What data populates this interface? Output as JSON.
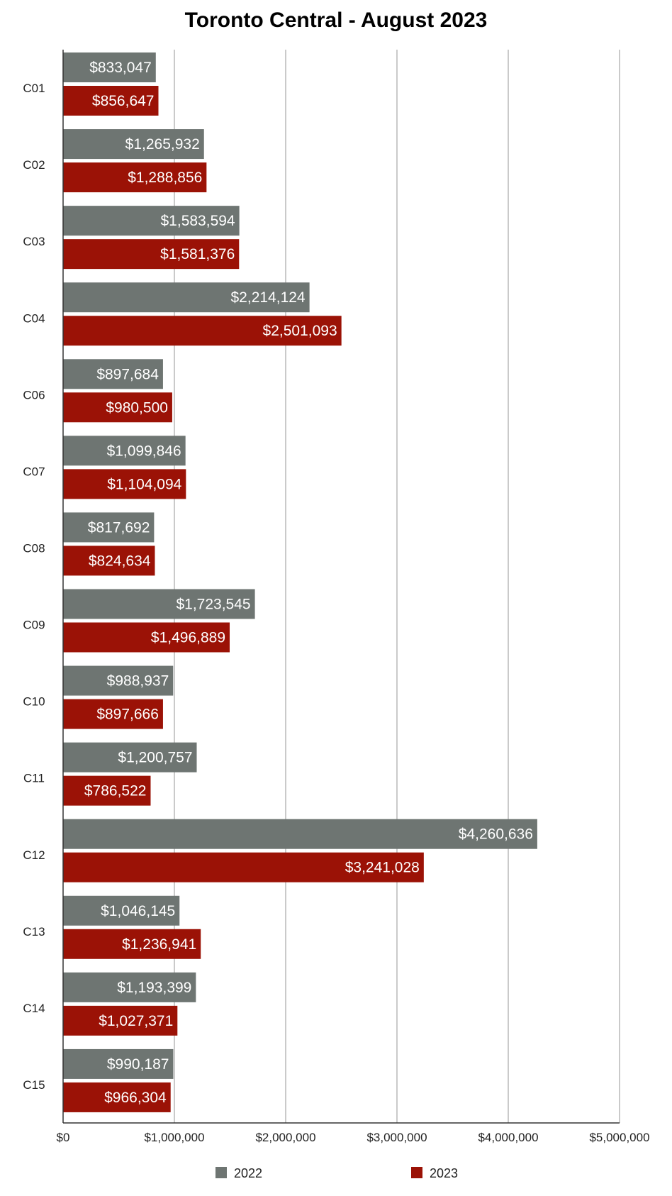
{
  "chart_data": {
    "type": "bar",
    "orientation": "horizontal",
    "title": "Toronto Central - August 2023",
    "categories": [
      "C01",
      "C02",
      "C03",
      "C04",
      "C06",
      "C07",
      "C08",
      "C09",
      "C10",
      "C11",
      "C12",
      "C13",
      "C14",
      "C15"
    ],
    "series": [
      {
        "name": "2022",
        "color": "#6e7572",
        "values": [
          833047,
          1265932,
          1583594,
          2214124,
          897684,
          1099846,
          817692,
          1723545,
          988937,
          1200757,
          4260636,
          1046145,
          1193399,
          990187
        ],
        "labels": [
          "$833,047",
          "$1,265,932",
          "$1,583,594",
          "$2,214,124",
          "$897,684",
          "$1,099,846",
          "$817,692",
          "$1,723,545",
          "$988,937",
          "$1,200,757",
          "$4,260,636",
          "$1,046,145",
          "$1,193,399",
          "$990,187"
        ]
      },
      {
        "name": "2023",
        "color": "#9b1206",
        "values": [
          856647,
          1288856,
          1581376,
          2501093,
          980500,
          1104094,
          824634,
          1496889,
          897666,
          786522,
          3241028,
          1236941,
          1027371,
          966304
        ],
        "labels": [
          "$856,647",
          "$1,288,856",
          "$1,581,376",
          "$2,501,093",
          "$980,500",
          "$1,104,094",
          "$824,634",
          "$1,496,889",
          "$897,666",
          "$786,522",
          "$3,241,028",
          "$1,236,941",
          "$1,027,371",
          "$966,304"
        ]
      }
    ],
    "xlim": [
      0,
      5000000
    ],
    "x_ticks": [
      0,
      1000000,
      2000000,
      3000000,
      4000000,
      5000000
    ],
    "x_tick_labels": [
      "$0",
      "$1,000,000",
      "$2,000,000",
      "$3,000,000",
      "$4,000,000",
      "$5,000,000"
    ],
    "xlabel": "",
    "ylabel": "",
    "grid": "vertical",
    "legend_position": "bottom"
  }
}
